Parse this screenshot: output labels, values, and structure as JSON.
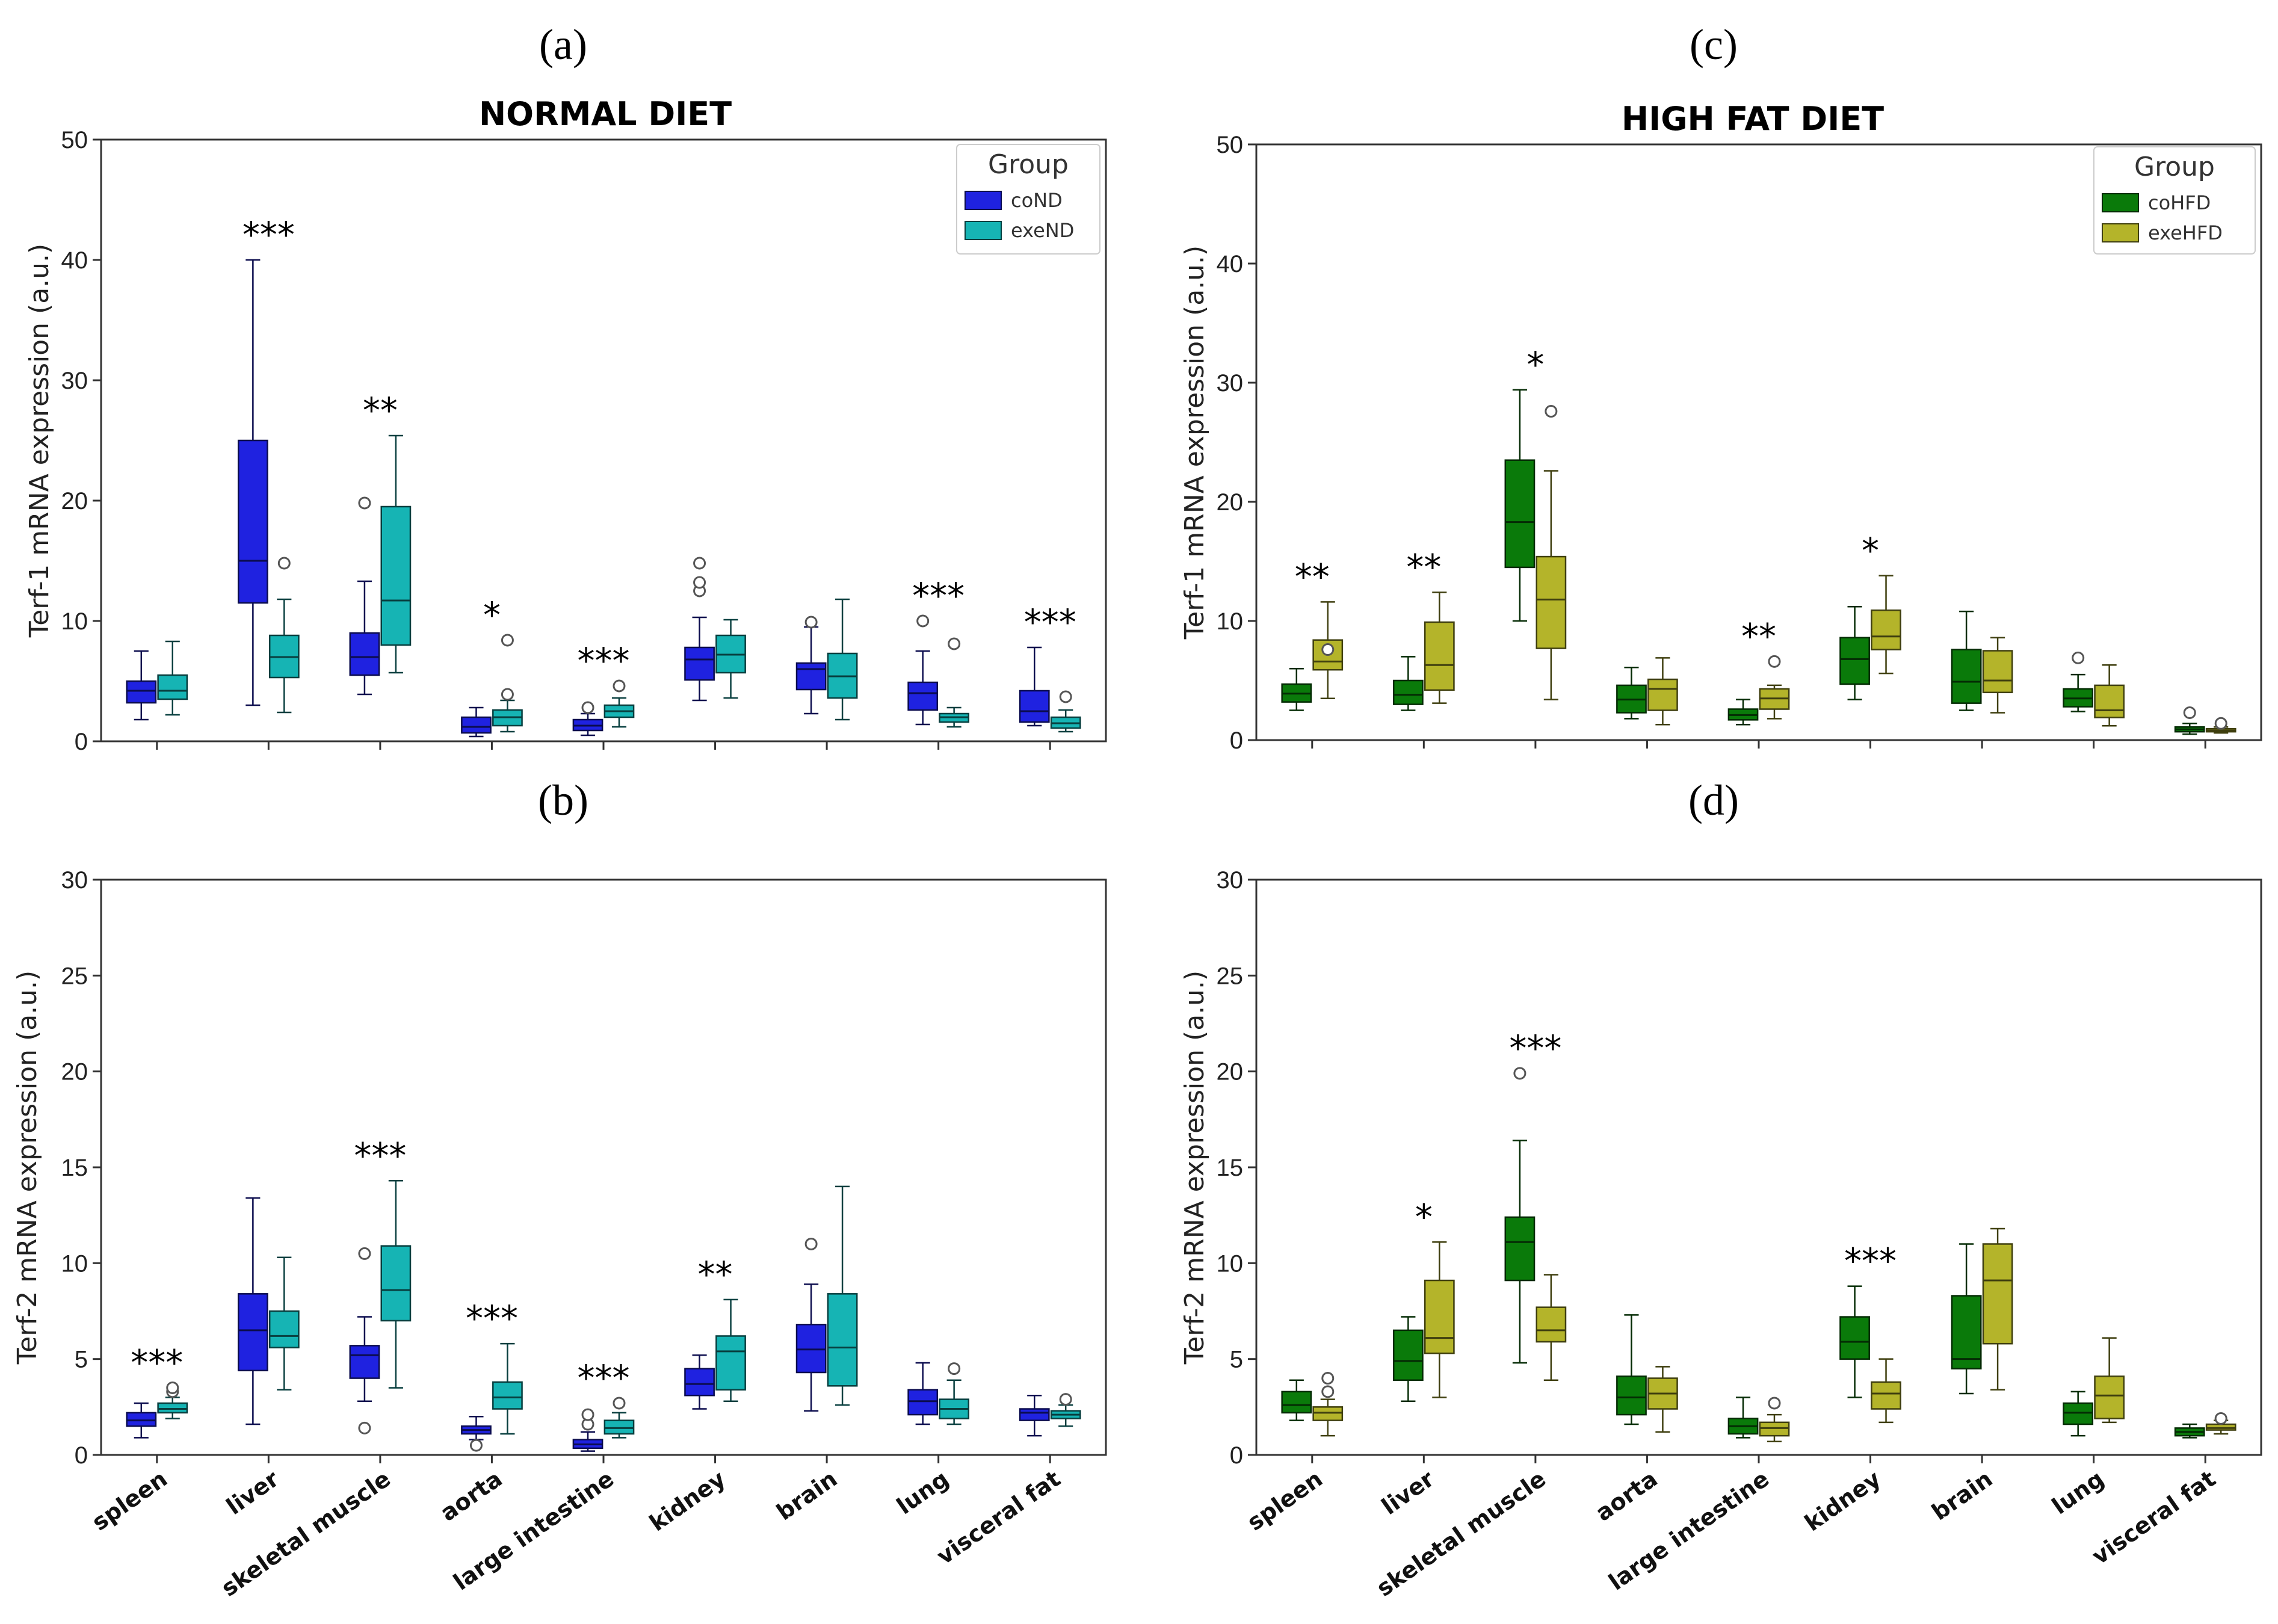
{
  "figure": {
    "categories": [
      "spleen",
      "liver",
      "skeletal muscle",
      "aorta",
      "large intestine",
      "kidney",
      "brain",
      "lung",
      "visceral fat"
    ],
    "colors": {
      "coND": "#1f22e0",
      "exeND": "#16b4b4",
      "coHFD": "#0a7a0a",
      "exeHFD": "#b4b42a"
    }
  },
  "chart_data": [
    {
      "panel": "(a)",
      "type": "box",
      "title": "NORMAL DIET",
      "ylabel": "Terf-1 mRNA expression (a.u.)",
      "ylim": [
        0,
        50
      ],
      "yticks": [
        0,
        10,
        20,
        30,
        40,
        50
      ],
      "legend": {
        "title": "Group",
        "position": "top-right",
        "entries": [
          "coND",
          "exeND"
        ]
      },
      "significance": [
        "",
        "***",
        "**",
        "*",
        "***",
        "",
        "",
        "***",
        "***"
      ],
      "series": [
        {
          "name": "coND",
          "color_key": "coND",
          "boxes": [
            {
              "min": 1.8,
              "q1": 3.2,
              "median": 4.2,
              "q3": 5.0,
              "max": 7.5,
              "outliers": []
            },
            {
              "min": 3.0,
              "q1": 11.5,
              "median": 15.0,
              "q3": 25.0,
              "max": 40.0,
              "outliers": []
            },
            {
              "min": 3.9,
              "q1": 5.5,
              "median": 7.0,
              "q3": 9.0,
              "max": 13.3,
              "outliers": [
                19.8
              ]
            },
            {
              "min": 0.4,
              "q1": 0.7,
              "median": 1.2,
              "q3": 2.0,
              "max": 2.8,
              "outliers": []
            },
            {
              "min": 0.5,
              "q1": 0.9,
              "median": 1.3,
              "q3": 1.8,
              "max": 2.3,
              "outliers": [
                2.8
              ]
            },
            {
              "min": 3.4,
              "q1": 5.1,
              "median": 6.8,
              "q3": 7.8,
              "max": 10.3,
              "outliers": [
                12.5,
                13.2,
                14.8
              ]
            },
            {
              "min": 2.3,
              "q1": 4.3,
              "median": 6.0,
              "q3": 6.5,
              "max": 9.5,
              "outliers": [
                9.9
              ]
            },
            {
              "min": 1.4,
              "q1": 2.6,
              "median": 4.0,
              "q3": 4.9,
              "max": 7.5,
              "outliers": [
                10.0
              ]
            },
            {
              "min": 1.3,
              "q1": 1.6,
              "median": 2.5,
              "q3": 4.2,
              "max": 7.8,
              "outliers": []
            }
          ]
        },
        {
          "name": "exeND",
          "color_key": "exeND",
          "boxes": [
            {
              "min": 2.2,
              "q1": 3.5,
              "median": 4.2,
              "q3": 5.5,
              "max": 8.3,
              "outliers": []
            },
            {
              "min": 2.4,
              "q1": 5.3,
              "median": 7.0,
              "q3": 8.8,
              "max": 11.8,
              "outliers": [
                14.8
              ]
            },
            {
              "min": 5.7,
              "q1": 8.0,
              "median": 11.7,
              "q3": 19.5,
              "max": 25.4,
              "outliers": []
            },
            {
              "min": 0.8,
              "q1": 1.3,
              "median": 2.0,
              "q3": 2.6,
              "max": 3.4,
              "outliers": [
                3.9,
                8.4
              ]
            },
            {
              "min": 1.2,
              "q1": 2.0,
              "median": 2.5,
              "q3": 3.0,
              "max": 3.6,
              "outliers": [
                4.6
              ]
            },
            {
              "min": 3.6,
              "q1": 5.7,
              "median": 7.2,
              "q3": 8.8,
              "max": 10.1,
              "outliers": []
            },
            {
              "min": 1.8,
              "q1": 3.6,
              "median": 5.4,
              "q3": 7.3,
              "max": 11.8,
              "outliers": []
            },
            {
              "min": 1.2,
              "q1": 1.6,
              "median": 2.0,
              "q3": 2.3,
              "max": 2.8,
              "outliers": [
                8.1
              ]
            },
            {
              "min": 0.8,
              "q1": 1.1,
              "median": 1.5,
              "q3": 2.0,
              "max": 2.6,
              "outliers": [
                3.7
              ]
            }
          ]
        }
      ]
    },
    {
      "panel": "(b)",
      "type": "box",
      "title": "",
      "ylabel": "Terf-2 mRNA expression (a.u.)",
      "ylim": [
        0,
        30
      ],
      "yticks": [
        0,
        5,
        10,
        15,
        20,
        25,
        30
      ],
      "legend": null,
      "significance": [
        "***",
        "",
        "***",
        "***",
        "***",
        "**",
        "",
        "",
        ""
      ],
      "series": [
        {
          "name": "coND",
          "color_key": "coND",
          "boxes": [
            {
              "min": 0.9,
              "q1": 1.5,
              "median": 1.8,
              "q3": 2.2,
              "max": 2.7,
              "outliers": []
            },
            {
              "min": 1.6,
              "q1": 4.4,
              "median": 6.5,
              "q3": 8.4,
              "max": 13.4,
              "outliers": []
            },
            {
              "min": 2.8,
              "q1": 4.0,
              "median": 5.2,
              "q3": 5.7,
              "max": 7.2,
              "outliers": [
                1.4,
                10.5
              ]
            },
            {
              "min": 0.8,
              "q1": 1.1,
              "median": 1.3,
              "q3": 1.5,
              "max": 2.0,
              "outliers": [
                0.5
              ]
            },
            {
              "min": 0.2,
              "q1": 0.35,
              "median": 0.55,
              "q3": 0.8,
              "max": 1.2,
              "outliers": [
                1.6,
                2.1
              ]
            },
            {
              "min": 2.4,
              "q1": 3.1,
              "median": 3.7,
              "q3": 4.5,
              "max": 5.2,
              "outliers": []
            },
            {
              "min": 2.3,
              "q1": 4.3,
              "median": 5.5,
              "q3": 6.8,
              "max": 8.9,
              "outliers": [
                11.0
              ]
            },
            {
              "min": 1.6,
              "q1": 2.1,
              "median": 2.8,
              "q3": 3.4,
              "max": 4.8,
              "outliers": []
            },
            {
              "min": 1.0,
              "q1": 1.8,
              "median": 2.2,
              "q3": 2.4,
              "max": 3.1,
              "outliers": []
            }
          ]
        },
        {
          "name": "exeND",
          "color_key": "exeND",
          "boxes": [
            {
              "min": 1.9,
              "q1": 2.2,
              "median": 2.4,
              "q3": 2.7,
              "max": 3.0,
              "outliers": [
                3.3,
                3.5
              ]
            },
            {
              "min": 3.4,
              "q1": 5.6,
              "median": 6.2,
              "q3": 7.5,
              "max": 10.3,
              "outliers": []
            },
            {
              "min": 3.5,
              "q1": 7.0,
              "median": 8.6,
              "q3": 10.9,
              "max": 14.3,
              "outliers": []
            },
            {
              "min": 1.1,
              "q1": 2.4,
              "median": 3.0,
              "q3": 3.8,
              "max": 5.8,
              "outliers": []
            },
            {
              "min": 0.9,
              "q1": 1.1,
              "median": 1.4,
              "q3": 1.8,
              "max": 2.2,
              "outliers": [
                2.7
              ]
            },
            {
              "min": 2.8,
              "q1": 3.4,
              "median": 5.4,
              "q3": 6.2,
              "max": 8.1,
              "outliers": []
            },
            {
              "min": 2.6,
              "q1": 3.6,
              "median": 5.6,
              "q3": 8.4,
              "max": 14.0,
              "outliers": []
            },
            {
              "min": 1.6,
              "q1": 1.9,
              "median": 2.4,
              "q3": 2.9,
              "max": 3.9,
              "outliers": [
                4.5
              ]
            },
            {
              "min": 1.5,
              "q1": 1.9,
              "median": 2.1,
              "q3": 2.3,
              "max": 2.6,
              "outliers": [
                2.9
              ]
            }
          ]
        }
      ]
    },
    {
      "panel": "(c)",
      "type": "box",
      "title": "HIGH FAT DIET",
      "ylabel": "Terf-1 mRNA expression (a.u.)",
      "ylim": [
        0,
        50
      ],
      "yticks": [
        0,
        10,
        20,
        30,
        40,
        50
      ],
      "legend": {
        "title": "Group",
        "position": "top-right",
        "entries": [
          "coHFD",
          "exeHFD"
        ]
      },
      "significance": [
        "**",
        "**",
        "*",
        "",
        "**",
        "*",
        "",
        "",
        ""
      ],
      "series": [
        {
          "name": "coHFD",
          "color_key": "coHFD",
          "boxes": [
            {
              "min": 2.5,
              "q1": 3.2,
              "median": 3.9,
              "q3": 4.7,
              "max": 6.0,
              "outliers": []
            },
            {
              "min": 2.5,
              "q1": 3.0,
              "median": 3.8,
              "q3": 5.0,
              "max": 7.0,
              "outliers": []
            },
            {
              "min": 10.0,
              "q1": 14.5,
              "median": 18.3,
              "q3": 23.5,
              "max": 29.4,
              "outliers": []
            },
            {
              "min": 1.8,
              "q1": 2.3,
              "median": 3.4,
              "q3": 4.6,
              "max": 6.1,
              "outliers": []
            },
            {
              "min": 1.3,
              "q1": 1.7,
              "median": 2.1,
              "q3": 2.6,
              "max": 3.4,
              "outliers": []
            },
            {
              "min": 3.4,
              "q1": 4.7,
              "median": 6.8,
              "q3": 8.6,
              "max": 11.2,
              "outliers": []
            },
            {
              "min": 2.5,
              "q1": 3.1,
              "median": 4.9,
              "q3": 7.6,
              "max": 10.8,
              "outliers": []
            },
            {
              "min": 2.4,
              "q1": 2.8,
              "median": 3.5,
              "q3": 4.3,
              "max": 5.5,
              "outliers": [
                6.9
              ]
            },
            {
              "min": 0.5,
              "q1": 0.7,
              "median": 0.9,
              "q3": 1.1,
              "max": 1.4,
              "outliers": [
                2.3
              ]
            }
          ]
        },
        {
          "name": "exeHFD",
          "color_key": "exeHFD",
          "boxes": [
            {
              "min": 3.5,
              "q1": 5.9,
              "median": 6.6,
              "q3": 8.4,
              "max": 11.6,
              "outliers": [
                7.6
              ]
            },
            {
              "min": 3.1,
              "q1": 4.2,
              "median": 6.3,
              "q3": 9.9,
              "max": 12.4,
              "outliers": []
            },
            {
              "min": 3.4,
              "q1": 7.7,
              "median": 11.8,
              "q3": 15.4,
              "max": 22.6,
              "outliers": [
                27.6
              ]
            },
            {
              "min": 1.3,
              "q1": 2.5,
              "median": 4.3,
              "q3": 5.1,
              "max": 6.9,
              "outliers": []
            },
            {
              "min": 1.8,
              "q1": 2.6,
              "median": 3.5,
              "q3": 4.3,
              "max": 4.6,
              "outliers": [
                6.6
              ]
            },
            {
              "min": 5.6,
              "q1": 7.6,
              "median": 8.7,
              "q3": 10.9,
              "max": 13.8,
              "outliers": []
            },
            {
              "min": 2.3,
              "q1": 4.0,
              "median": 5.0,
              "q3": 7.5,
              "max": 8.6,
              "outliers": []
            },
            {
              "min": 1.2,
              "q1": 1.9,
              "median": 2.5,
              "q3": 4.6,
              "max": 6.3,
              "outliers": []
            },
            {
              "min": 0.6,
              "q1": 0.7,
              "median": 0.8,
              "q3": 0.95,
              "max": 1.1,
              "outliers": [
                1.4
              ]
            }
          ]
        }
      ]
    },
    {
      "panel": "(d)",
      "type": "box",
      "title": "",
      "ylabel": "Terf-2 mRNA expression (a.u.)",
      "ylim": [
        0,
        30
      ],
      "yticks": [
        0,
        5,
        10,
        15,
        20,
        25,
        30
      ],
      "legend": null,
      "significance": [
        "",
        "*",
        "***",
        "",
        "",
        "***",
        "",
        "",
        ""
      ],
      "series": [
        {
          "name": "coHFD",
          "color_key": "coHFD",
          "boxes": [
            {
              "min": 1.8,
              "q1": 2.2,
              "median": 2.6,
              "q3": 3.3,
              "max": 3.9,
              "outliers": []
            },
            {
              "min": 2.8,
              "q1": 3.9,
              "median": 4.9,
              "q3": 6.5,
              "max": 7.2,
              "outliers": []
            },
            {
              "min": 4.8,
              "q1": 9.1,
              "median": 11.1,
              "q3": 12.4,
              "max": 16.4,
              "outliers": [
                19.9
              ]
            },
            {
              "min": 1.6,
              "q1": 2.1,
              "median": 3.0,
              "q3": 4.1,
              "max": 7.3,
              "outliers": []
            },
            {
              "min": 0.9,
              "q1": 1.1,
              "median": 1.5,
              "q3": 1.9,
              "max": 3.0,
              "outliers": []
            },
            {
              "min": 3.0,
              "q1": 5.0,
              "median": 5.9,
              "q3": 7.2,
              "max": 8.8,
              "outliers": []
            },
            {
              "min": 3.2,
              "q1": 4.5,
              "median": 5.0,
              "q3": 8.3,
              "max": 11.0,
              "outliers": []
            },
            {
              "min": 1.0,
              "q1": 1.6,
              "median": 2.2,
              "q3": 2.7,
              "max": 3.3,
              "outliers": []
            },
            {
              "min": 0.9,
              "q1": 1.0,
              "median": 1.2,
              "q3": 1.4,
              "max": 1.6,
              "outliers": []
            }
          ]
        },
        {
          "name": "exeHFD",
          "color_key": "exeHFD",
          "boxes": [
            {
              "min": 1.0,
              "q1": 1.8,
              "median": 2.2,
              "q3": 2.5,
              "max": 2.9,
              "outliers": [
                3.3,
                4.0
              ]
            },
            {
              "min": 3.0,
              "q1": 5.3,
              "median": 6.1,
              "q3": 9.1,
              "max": 11.1,
              "outliers": []
            },
            {
              "min": 3.9,
              "q1": 5.9,
              "median": 6.5,
              "q3": 7.7,
              "max": 9.4,
              "outliers": []
            },
            {
              "min": 1.2,
              "q1": 2.4,
              "median": 3.2,
              "q3": 4.0,
              "max": 4.6,
              "outliers": []
            },
            {
              "min": 0.7,
              "q1": 1.0,
              "median": 1.4,
              "q3": 1.7,
              "max": 2.1,
              "outliers": [
                2.7
              ]
            },
            {
              "min": 1.7,
              "q1": 2.4,
              "median": 3.2,
              "q3": 3.8,
              "max": 5.0,
              "outliers": []
            },
            {
              "min": 3.4,
              "q1": 5.8,
              "median": 9.1,
              "q3": 11.0,
              "max": 11.8,
              "outliers": []
            },
            {
              "min": 1.7,
              "q1": 1.9,
              "median": 3.1,
              "q3": 4.1,
              "max": 6.1,
              "outliers": []
            },
            {
              "min": 1.1,
              "q1": 1.3,
              "median": 1.4,
              "q3": 1.6,
              "max": 1.8,
              "outliers": [
                1.9
              ]
            }
          ]
        }
      ]
    }
  ]
}
